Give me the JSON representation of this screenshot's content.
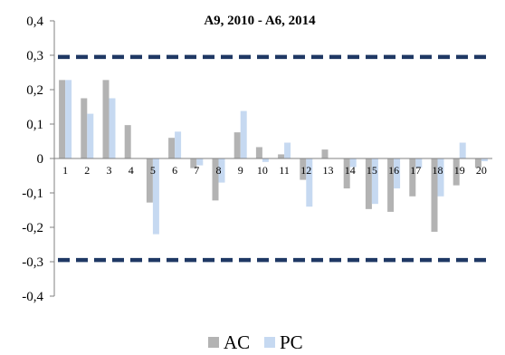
{
  "chart_data": {
    "type": "bar",
    "title": "A9, 2010 - A6, 2014",
    "xlabel": "",
    "ylabel": "",
    "categories": [
      "1",
      "2",
      "3",
      "4",
      "5",
      "6",
      "7",
      "8",
      "9",
      "10",
      "11",
      "12",
      "13",
      "14",
      "15",
      "16",
      "17",
      "18",
      "19",
      "20"
    ],
    "series": [
      {
        "name": "AC",
        "color": "#b3b3b3",
        "values": [
          0.228,
          0.175,
          0.228,
          0.097,
          -0.128,
          0.06,
          -0.028,
          -0.122,
          0.076,
          0.033,
          0.012,
          -0.062,
          0.026,
          -0.087,
          -0.147,
          -0.155,
          -0.11,
          -0.213,
          -0.078,
          -0.027
        ]
      },
      {
        "name": "PC",
        "color": "#c6d9f1",
        "values": [
          0.228,
          0.13,
          0.175,
          0.0,
          -0.22,
          0.078,
          -0.02,
          -0.07,
          0.138,
          -0.01,
          0.046,
          -0.14,
          0.0,
          -0.025,
          -0.132,
          -0.087,
          -0.027,
          -0.11,
          0.046,
          -0.008
        ]
      }
    ],
    "ylim": [
      -0.4,
      0.4
    ],
    "yticks": [
      0.4,
      0.3,
      0.2,
      0.1,
      0,
      -0.1,
      -0.2,
      -0.3,
      -0.4
    ],
    "ytick_labels": [
      "0,4",
      "0,3",
      "0,2",
      "0,1",
      "0",
      "-0,1",
      "-0,2",
      "-0,3",
      "-0,4"
    ],
    "reference_lines": [
      {
        "value": 0.295,
        "style": "dashed",
        "color": "#1f3864"
      },
      {
        "value": -0.295,
        "style": "dashed",
        "color": "#1f3864"
      }
    ],
    "grid": false,
    "legend": {
      "position": "bottom",
      "entries": [
        "AC",
        "PC"
      ]
    }
  }
}
